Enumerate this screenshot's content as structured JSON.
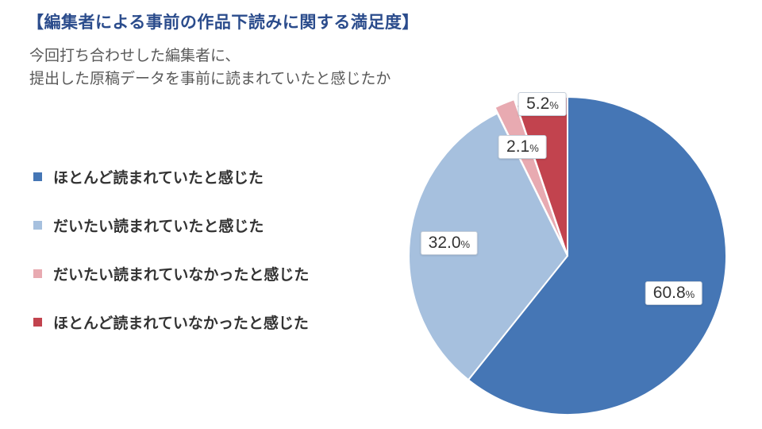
{
  "title": "【編集者による事前の作品下読みに関する満足度】",
  "subtitle_line1": "今回打ち合わせした編集者に、",
  "subtitle_line2": "提出した原稿データを事前に読まれていたと感じたか",
  "chart_data": {
    "type": "pie",
    "title": "編集者による事前の作品下読みに関する満足度",
    "categories": [
      "ほとんど読まれていたと感じた",
      "だいたい読まれていたと感じた",
      "だいたい読まれていなかったと感じた",
      "ほとんど読まれていなかったと感じた"
    ],
    "values": [
      60.8,
      32.0,
      2.1,
      5.2
    ],
    "value_labels": [
      "60.8",
      "32.0",
      "2.1",
      "5.2"
    ],
    "percent_symbol": "%",
    "colors": [
      "#4576b5",
      "#a6c0de",
      "#e8aab1",
      "#c2434e"
    ],
    "start_angle_deg": 0,
    "direction": "clockwise",
    "legend_position": "left",
    "exploded_index": 2,
    "slice_border_color": "#ffffff"
  }
}
